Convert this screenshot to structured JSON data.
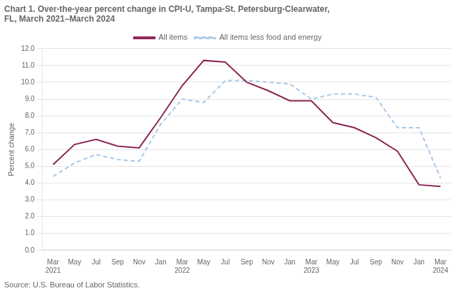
{
  "chart_data": {
    "type": "line",
    "title": "Chart 1. Over-the-year percent change in CPI-U, Tampa-St. Petersburg-Clearwater,\nFL, March 2021–March 2024",
    "y_label": "Percent change",
    "source": "Source: U.S. Bureau of Labor Statistics.",
    "categories": [
      "Mar\n2021",
      "May",
      "Jul",
      "Sep",
      "Nov",
      "Jan",
      "Mar\n2022",
      "May",
      "Jul",
      "Sep",
      "Nov",
      "Jan",
      "Mar\n2023",
      "May",
      "Jul",
      "Sep",
      "Nov",
      "Jan",
      "Mar\n2024"
    ],
    "series": [
      {
        "name": "All items",
        "color": "#8B2252",
        "line_style": "solid",
        "values": [
          5.1,
          6.3,
          6.6,
          6.2,
          6.1,
          7.9,
          9.8,
          11.3,
          11.2,
          10.0,
          9.5,
          8.9,
          8.9,
          7.6,
          7.3,
          6.7,
          5.9,
          3.9,
          3.8
        ]
      },
      {
        "name": "All items less food and energy",
        "color": "#A8C8E8",
        "line_style": "dashed",
        "values": [
          4.4,
          5.2,
          5.7,
          5.4,
          5.3,
          7.5,
          9.0,
          8.8,
          10.1,
          10.1,
          10.0,
          9.9,
          9.0,
          9.3,
          9.3,
          9.1,
          7.3,
          7.3,
          4.3
        ]
      }
    ],
    "ylim": [
      0.0,
      12.0
    ],
    "yticks": [
      {
        "value": 0,
        "label": "0.0"
      },
      {
        "value": 1,
        "label": "1.0"
      },
      {
        "value": 2,
        "label": "2.0"
      },
      {
        "value": 3,
        "label": "3.0"
      },
      {
        "value": 4,
        "label": "4.0"
      },
      {
        "value": 5,
        "label": "5.0"
      },
      {
        "value": 6,
        "label": "6.0"
      },
      {
        "value": 7,
        "label": "7.0"
      },
      {
        "value": 8,
        "label": "8.0"
      },
      {
        "value": 9,
        "label": "9.0"
      },
      {
        "value": 10,
        "label": "10.0"
      },
      {
        "value": 11,
        "label": "11.0"
      },
      {
        "value": 12,
        "label": "12.0"
      }
    ],
    "grid": true,
    "legend": "top"
  }
}
